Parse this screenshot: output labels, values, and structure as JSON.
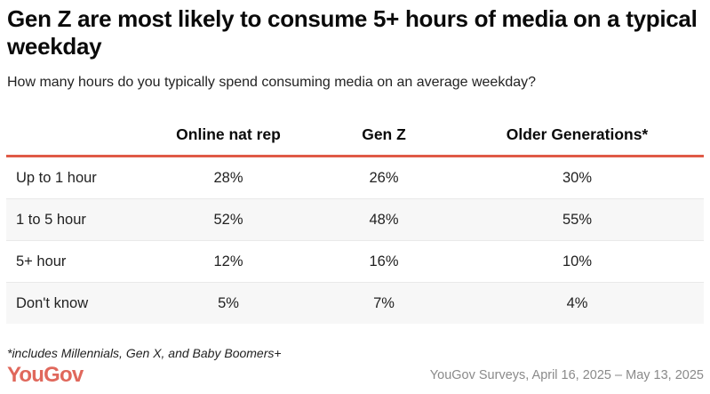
{
  "title": "Gen Z are most likely to consume 5+ hours of media on a typical weekday",
  "subtitle": "How many hours do you typically spend consuming media on an average weekday?",
  "chart_data": {
    "type": "table",
    "title": "Gen Z are most likely to consume 5+ hours of media on a typical weekday",
    "subtitle": "How many hours do you typically spend consuming media on an average weekday?",
    "columns": [
      "",
      "Online nat rep",
      "Gen Z",
      "Older Generations*"
    ],
    "rows": [
      {
        "label": "Up to 1 hour",
        "values": [
          "28%",
          "26%",
          "30%"
        ]
      },
      {
        "label": "1 to 5 hour",
        "values": [
          "52%",
          "48%",
          "55%"
        ]
      },
      {
        "label": "5+ hour",
        "values": [
          "12%",
          "16%",
          "10%"
        ]
      },
      {
        "label": "Don't know",
        "values": [
          "5%",
          "7%",
          "4%"
        ]
      }
    ],
    "series": [
      {
        "name": "Online nat rep",
        "values": [
          28,
          52,
          12,
          5
        ]
      },
      {
        "name": "Gen Z",
        "values": [
          26,
          48,
          16,
          7
        ]
      },
      {
        "name": "Older Generations*",
        "values": [
          30,
          55,
          10,
          4
        ]
      }
    ],
    "categories": [
      "Up to 1 hour",
      "1 to 5 hour",
      "5+ hour",
      "Don't know"
    ]
  },
  "footnote": "*includes Millennials, Gen X, and Baby Boomers+",
  "logo": "YouGov",
  "source": "YouGov Surveys, April 16, 2025 – May 13, 2025",
  "colors": {
    "accent": "#e05a47",
    "logo": "#e0685c",
    "row_alt": "#f7f7f7"
  }
}
